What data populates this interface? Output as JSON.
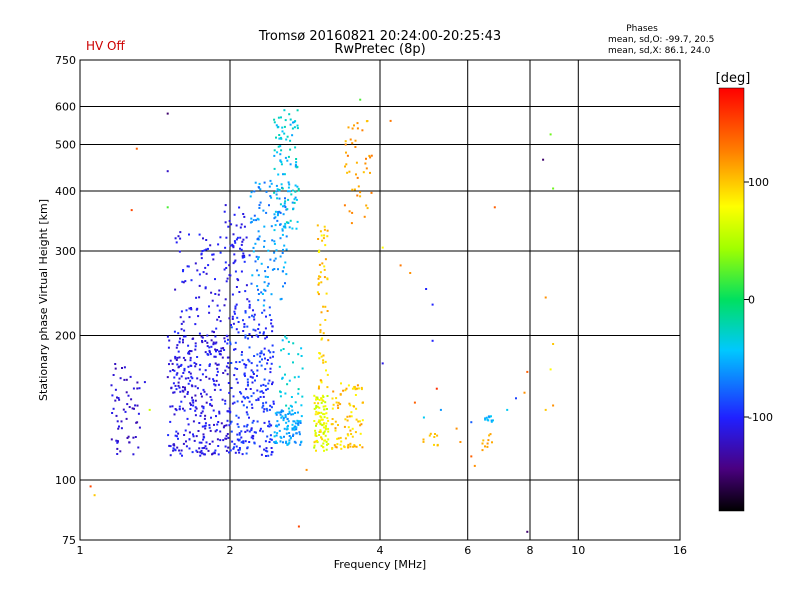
{
  "status_label": "HV Off",
  "phase_stats": {
    "title": "Phases",
    "line_o": "mean, sd,O: -99.7, 20.5",
    "line_x": "mean, sd,X:  86.1, 24.0"
  },
  "colorbar": {
    "unit_label": "[deg]",
    "ticks": [
      100,
      0,
      -100
    ],
    "range": [
      -180,
      180
    ]
  },
  "colors": {
    "status": "#cc0000",
    "grid": "#000000"
  },
  "chart_data": {
    "type": "scatter",
    "title": "Tromsø 20160821 20:24:00-20:25:43",
    "subtitle": "RwPretec (8p)",
    "xlabel": "Frequency [MHz]",
    "ylabel": "Stationary phase Virtual Height [km]",
    "x_scale": "log",
    "y_scale": "log",
    "xlim": [
      1,
      16
    ],
    "ylim": [
      75,
      750
    ],
    "x_ticks": [
      1,
      2,
      4,
      6,
      8,
      10,
      16
    ],
    "y_ticks": [
      75,
      100,
      200,
      300,
      400,
      500,
      600,
      750
    ],
    "grid": true,
    "color_by": "phase [deg]",
    "clusters": [
      {
        "f": [
          1.15,
          1.32
        ],
        "h": [
          112,
          175
        ],
        "n": 60,
        "phase": [
          -130,
          -105
        ]
      },
      {
        "f": [
          1.5,
          2.0
        ],
        "h": [
          112,
          200
        ],
        "n": 330,
        "phase": [
          -125,
          -95
        ]
      },
      {
        "f": [
          1.55,
          2.2
        ],
        "h": [
          200,
          330
        ],
        "n": 110,
        "phase": [
          -120,
          -95
        ]
      },
      {
        "f": [
          1.95,
          2.15
        ],
        "h": [
          260,
          380
        ],
        "n": 40,
        "phase": [
          -115,
          -95
        ]
      },
      {
        "f": [
          2.0,
          2.45
        ],
        "h": [
          112,
          230
        ],
        "n": 260,
        "phase": [
          -110,
          -80
        ]
      },
      {
        "f": [
          2.2,
          2.6
        ],
        "h": [
          230,
          420
        ],
        "n": 120,
        "phase": [
          -80,
          -45
        ]
      },
      {
        "f": [
          2.45,
          2.75
        ],
        "h": [
          330,
          590
        ],
        "n": 110,
        "phase": [
          -60,
          -20
        ]
      },
      {
        "f": [
          2.45,
          2.8
        ],
        "h": [
          118,
          140
        ],
        "n": 100,
        "phase": [
          -70,
          -40
        ]
      },
      {
        "f": [
          2.5,
          2.8
        ],
        "h": [
          140,
          200
        ],
        "n": 35,
        "phase": [
          -50,
          -20
        ]
      },
      {
        "f": [
          2.95,
          3.15
        ],
        "h": [
          115,
          150
        ],
        "n": 100,
        "phase": [
          50,
          100
        ]
      },
      {
        "f": [
          3.0,
          3.15
        ],
        "h": [
          150,
          340
        ],
        "n": 60,
        "phase": [
          80,
          115
        ]
      },
      {
        "f": [
          3.2,
          3.7
        ],
        "h": [
          116,
          160
        ],
        "n": 90,
        "phase": [
          80,
          120
        ]
      },
      {
        "f": [
          3.4,
          3.9
        ],
        "h": [
          340,
          560
        ],
        "n": 45,
        "phase": [
          100,
          130
        ]
      },
      {
        "f": [
          4.7,
          5.3
        ],
        "h": [
          118,
          125
        ],
        "n": 10,
        "phase": [
          90,
          110
        ]
      },
      {
        "f": [
          6.5,
          6.8
        ],
        "h": [
          132,
          136
        ],
        "n": 12,
        "phase": [
          -60,
          -40
        ]
      },
      {
        "f": [
          6.4,
          6.8
        ],
        "h": [
          115,
          125
        ],
        "n": 10,
        "phase": [
          100,
          120
        ]
      }
    ],
    "points": [
      {
        "x": 1.5,
        "y": 580,
        "phase": -150
      },
      {
        "x": 1.5,
        "y": 440,
        "phase": -120
      },
      {
        "x": 1.5,
        "y": 370,
        "phase": 20
      },
      {
        "x": 1.27,
        "y": 365,
        "phase": 150
      },
      {
        "x": 1.3,
        "y": 490,
        "phase": 140
      },
      {
        "x": 1.05,
        "y": 97,
        "phase": 150
      },
      {
        "x": 1.07,
        "y": 93,
        "phase": 100
      },
      {
        "x": 2.75,
        "y": 80,
        "phase": 150
      },
      {
        "x": 2.85,
        "y": 105,
        "phase": 120
      },
      {
        "x": 4.2,
        "y": 560,
        "phase": 130
      },
      {
        "x": 4.05,
        "y": 305,
        "phase": 80
      },
      {
        "x": 4.4,
        "y": 280,
        "phase": 130
      },
      {
        "x": 4.6,
        "y": 270,
        "phase": 120
      },
      {
        "x": 4.95,
        "y": 250,
        "phase": -100
      },
      {
        "x": 5.1,
        "y": 232,
        "phase": -100
      },
      {
        "x": 5.1,
        "y": 195,
        "phase": -100
      },
      {
        "x": 4.05,
        "y": 175,
        "phase": -110
      },
      {
        "x": 4.7,
        "y": 145,
        "phase": 140
      },
      {
        "x": 5.2,
        "y": 155,
        "phase": 160
      },
      {
        "x": 5.3,
        "y": 140,
        "phase": -60
      },
      {
        "x": 4.9,
        "y": 135,
        "phase": -40
      },
      {
        "x": 5.7,
        "y": 128,
        "phase": 120
      },
      {
        "x": 5.8,
        "y": 120,
        "phase": 120
      },
      {
        "x": 6.1,
        "y": 112,
        "phase": 140
      },
      {
        "x": 6.2,
        "y": 107,
        "phase": 120
      },
      {
        "x": 6.1,
        "y": 132,
        "phase": -80
      },
      {
        "x": 6.8,
        "y": 370,
        "phase": 140
      },
      {
        "x": 7.2,
        "y": 140,
        "phase": -40
      },
      {
        "x": 7.5,
        "y": 148,
        "phase": -90
      },
      {
        "x": 7.8,
        "y": 152,
        "phase": 120
      },
      {
        "x": 7.9,
        "y": 168,
        "phase": 140
      },
      {
        "x": 7.9,
        "y": 78,
        "phase": -150
      },
      {
        "x": 8.5,
        "y": 465,
        "phase": -150
      },
      {
        "x": 8.8,
        "y": 525,
        "phase": 30
      },
      {
        "x": 8.9,
        "y": 405,
        "phase": 30
      },
      {
        "x": 8.6,
        "y": 240,
        "phase": 120
      },
      {
        "x": 8.9,
        "y": 192,
        "phase": 100
      },
      {
        "x": 8.8,
        "y": 170,
        "phase": 80
      },
      {
        "x": 8.6,
        "y": 140,
        "phase": 100
      },
      {
        "x": 8.9,
        "y": 143,
        "phase": 120
      },
      {
        "x": 3.65,
        "y": 620,
        "phase": 20
      },
      {
        "x": 1.38,
        "y": 140,
        "phase": 60
      },
      {
        "x": 1.35,
        "y": 160,
        "phase": -110
      }
    ]
  }
}
